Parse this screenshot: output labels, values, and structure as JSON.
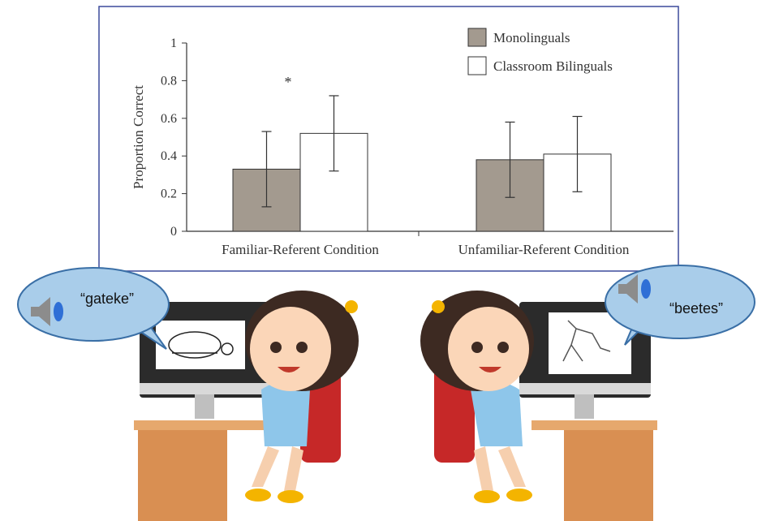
{
  "chart_data": {
    "type": "bar",
    "y_label": "Proportion Correct",
    "categories": [
      "Familiar-Referent Condition",
      "Unfamiliar-Referent Condition"
    ],
    "series": [
      {
        "name": "Monolinguals",
        "color": "#a39a8f",
        "values": [
          0.33,
          0.38
        ],
        "errors": [
          0.2,
          0.2
        ]
      },
      {
        "name": "Classroom Bilinguals",
        "color": "#ffffff",
        "values": [
          0.52,
          0.41
        ],
        "errors": [
          0.2,
          0.2
        ]
      }
    ],
    "annotations": [
      "*"
    ],
    "ylim": [
      0,
      1
    ],
    "yticks": [
      0,
      0.2,
      0.4,
      0.6,
      0.8,
      1
    ],
    "grid": false,
    "legend": "top-right"
  },
  "speech": [
    "“gateke”",
    "“beetes”"
  ]
}
